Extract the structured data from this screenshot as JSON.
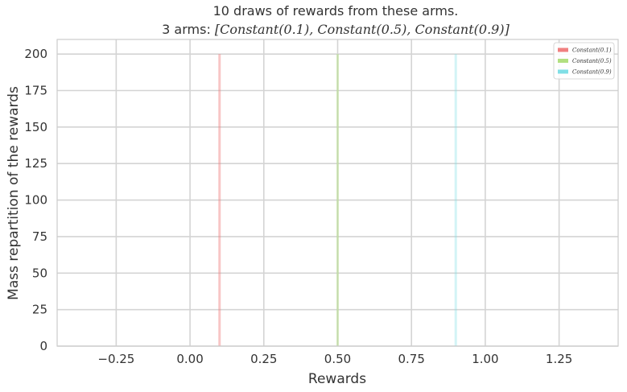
{
  "chart_data": {
    "type": "bar",
    "title_line1": "10 draws of rewards from these arms.",
    "title_line2_prefix": "3 arms: ",
    "title_line2_math": "[Constant(0.1), Constant(0.5), Constant(0.9)]",
    "xlabel": "Rewards",
    "ylabel": "Mass repartition of the rewards",
    "xlim": [
      -0.45,
      1.45
    ],
    "ylim": [
      0,
      210
    ],
    "xticks": [
      -0.25,
      0.0,
      0.25,
      0.5,
      0.75,
      1.0,
      1.25
    ],
    "xtick_labels": [
      "−0.25",
      "0.00",
      "0.25",
      "0.50",
      "0.75",
      "1.00",
      "1.25"
    ],
    "yticks": [
      0,
      25,
      50,
      75,
      100,
      125,
      150,
      175,
      200
    ],
    "ytick_labels": [
      "0",
      "25",
      "50",
      "75",
      "100",
      "125",
      "150",
      "175",
      "200"
    ],
    "grid": true,
    "legend_position": "top-right",
    "series": [
      {
        "name": "Constant(0.1)",
        "x": 0.1,
        "value": 200,
        "color": "#f08080",
        "bar_alpha": 0.45
      },
      {
        "name": "Constant(0.5)",
        "x": 0.5,
        "value": 200,
        "color": "#b2e080",
        "bar_alpha": 0.45
      },
      {
        "name": "Constant(0.9)",
        "x": 0.9,
        "value": 200,
        "color": "#80dfe6",
        "bar_alpha": 0.35
      }
    ]
  }
}
